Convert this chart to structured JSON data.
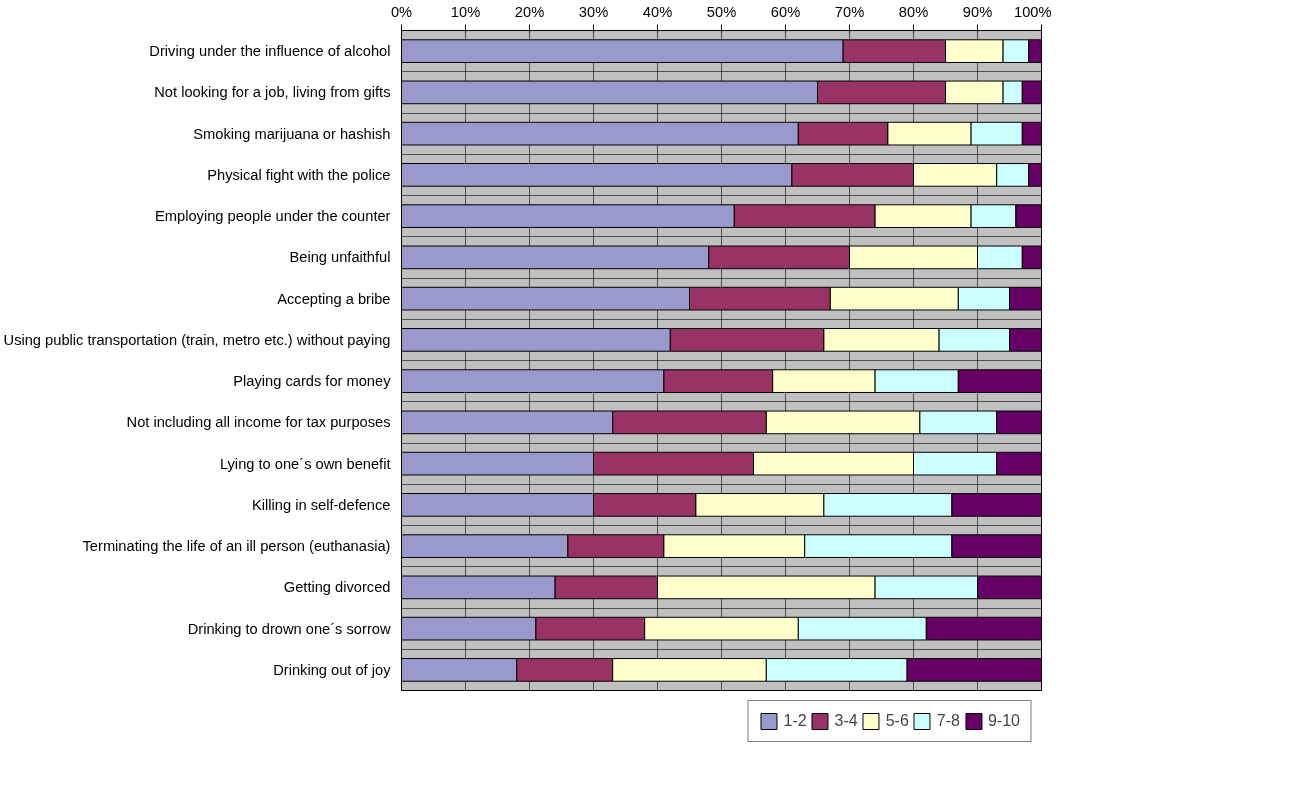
{
  "chart_data": {
    "type": "bar",
    "orientation": "horizontal",
    "stacked": true,
    "grid": true,
    "legend": "bottom",
    "categories": [
      "Driving under the influence of alcohol",
      "Not looking for a job, living from gifts",
      "Smoking marijuana or hashish",
      "Physical fight with the police",
      "Employing people under the counter",
      "Being unfaithful",
      "Accepting a bribe",
      "Using public transportation (train, metro etc.) without paying",
      "Playing cards for money",
      "Not including all income for tax purposes",
      "Lying to one´s own benefit",
      "Killing in self-defence",
      "Terminating the life of an ill person (euthanasia)",
      "Getting divorced",
      "Drinking to drown one´s sorrow",
      "Drinking out of joy"
    ],
    "xlim": [
      0,
      100
    ],
    "xticks": [
      {
        "value": 0,
        "label": "0%"
      },
      {
        "value": 10,
        "label": "10%"
      },
      {
        "value": 20,
        "label": "20%"
      },
      {
        "value": 30,
        "label": "30%"
      },
      {
        "value": 40,
        "label": "40%"
      },
      {
        "value": 50,
        "label": "50%"
      },
      {
        "value": 60,
        "label": "60%"
      },
      {
        "value": 70,
        "label": "70%"
      },
      {
        "value": 80,
        "label": "80%"
      },
      {
        "value": 90,
        "label": "90%"
      },
      {
        "value": 100,
        "label": "100%"
      }
    ],
    "series": [
      {
        "name": "1-2",
        "color": "#9999cc",
        "values": [
          69,
          65,
          62,
          61,
          52,
          48,
          45,
          42,
          41,
          33,
          30,
          30,
          26,
          24,
          21,
          18
        ]
      },
      {
        "name": "3-4",
        "color": "#993366",
        "values": [
          16,
          20,
          14,
          19,
          22,
          22,
          22,
          24,
          17,
          24,
          25,
          16,
          15,
          16,
          17,
          15
        ]
      },
      {
        "name": "5-6",
        "color": "#ffffcc",
        "values": [
          9,
          9,
          13,
          13,
          15,
          20,
          20,
          18,
          16,
          24,
          25,
          20,
          22,
          34,
          24,
          24
        ]
      },
      {
        "name": "7-8",
        "color": "#ccffff",
        "values": [
          4,
          3,
          8,
          5,
          7,
          7,
          8,
          11,
          13,
          12,
          13,
          20,
          23,
          16,
          20,
          22
        ]
      },
      {
        "name": "9-10",
        "color": "#660066",
        "values": [
          2,
          3,
          3,
          2,
          4,
          3,
          5,
          5,
          13,
          7,
          7,
          14,
          14,
          10,
          18,
          21
        ]
      }
    ]
  }
}
